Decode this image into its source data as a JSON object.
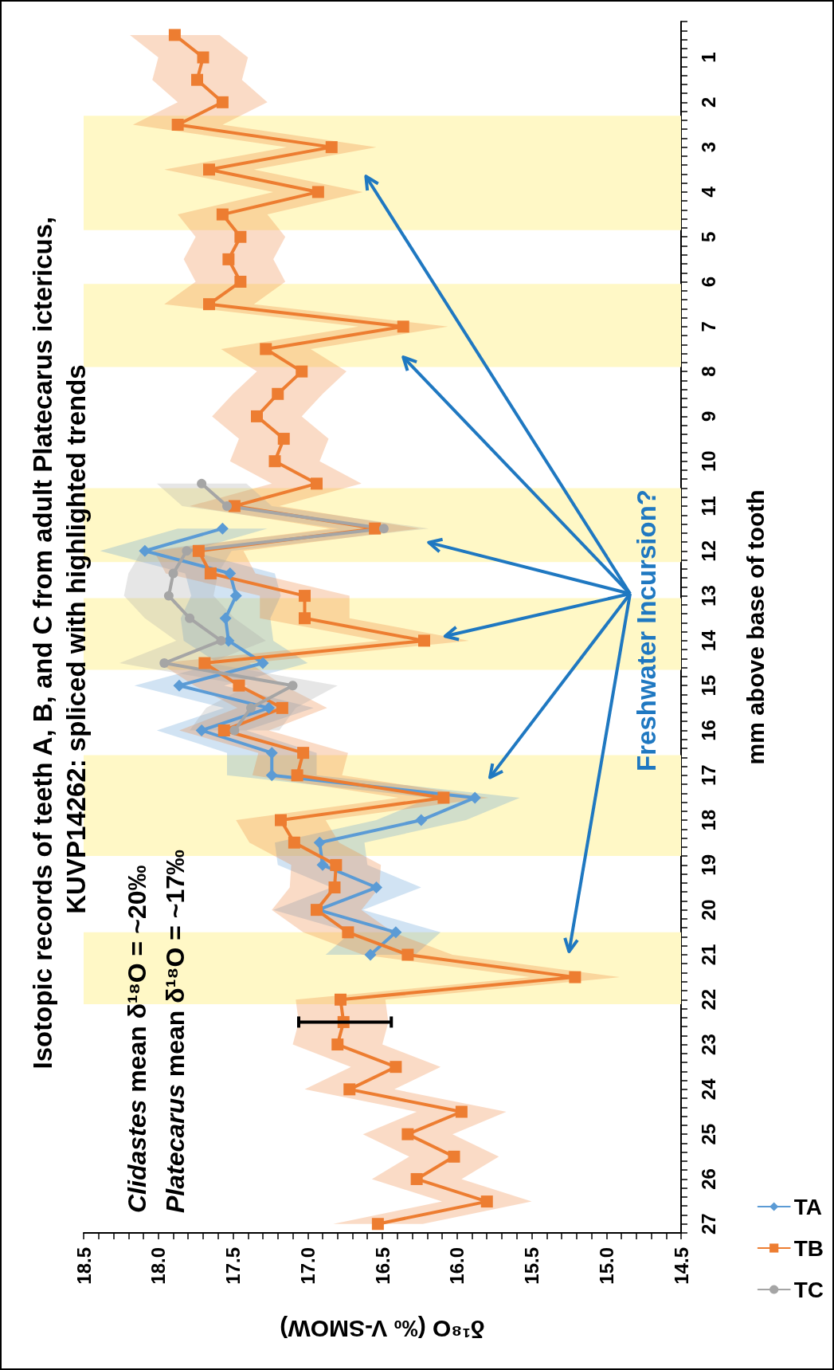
{
  "chart_data": {
    "type": "line",
    "title": "Isotopic records of teeth A, B, and C from adult Platecarus ictericus, KUVP14262: spliced with highlighted trends",
    "orientation": "horizontal",
    "xlabel": "δ¹⁸O (‰ V-SMOW)",
    "ylabel": "mm above base of tooth",
    "annotations": [
      "Clidastes mean δ¹⁸O = ~20‰",
      "Platecarus mean δ¹⁸O = ~17‰",
      {
        "text": "Freshwater Incursion?",
        "x": 16.08,
        "y": 13.9
      }
    ],
    "xlim": [
      18.5,
      14.5
    ],
    "ylim": [
      27.2,
      0.2
    ],
    "grid": false,
    "legend": "bottom",
    "line_style": "solid",
    "xticks": [
      14.5,
      {
        "value": 14.6,
        "label": null
      },
      {
        "value": 14.7,
        "label": null
      },
      {
        "value": 14.8,
        "label": null
      },
      {
        "value": 14.9,
        "label": null
      },
      {
        "value": 15,
        "label": "15.0"
      },
      {
        "value": 15.1,
        "label": null
      },
      {
        "value": 15.2,
        "label": null
      },
      {
        "value": 15.3,
        "label": null
      },
      {
        "value": 15.4,
        "label": null
      },
      15.5,
      {
        "value": 15.6,
        "label": null
      },
      {
        "value": 15.7,
        "label": null
      },
      {
        "value": 15.8,
        "label": null
      },
      {
        "value": 15.9,
        "label": null
      },
      {
        "value": 16,
        "label": "16.0"
      },
      {
        "value": 16.1,
        "label": null
      },
      {
        "value": 16.2,
        "label": null
      },
      {
        "value": 16.3,
        "label": null
      },
      {
        "value": 16.4,
        "label": null
      },
      16.5,
      {
        "value": 16.6,
        "label": null
      },
      {
        "value": 16.7,
        "label": null
      },
      {
        "value": 16.8,
        "label": null
      },
      {
        "value": 16.9,
        "label": null
      },
      {
        "value": 17,
        "label": "17.0"
      },
      {
        "value": 17.1,
        "label": null
      },
      {
        "value": 17.2,
        "label": null
      },
      {
        "value": 17.3,
        "label": null
      },
      {
        "value": 17.4,
        "label": null
      },
      17.5,
      {
        "value": 17.6,
        "label": null
      },
      {
        "value": 17.7,
        "label": null
      },
      {
        "value": 17.8,
        "label": null
      },
      {
        "value": 17.9,
        "label": null
      },
      {
        "value": 18,
        "label": "18.0"
      },
      {
        "value": 18.1,
        "label": null
      },
      {
        "value": 18.2,
        "label": null
      },
      {
        "value": 18.3,
        "label": null
      },
      {
        "value": 18.4,
        "label": null
      },
      18.5
    ],
    "yticks": [
      {
        "value": 0.2,
        "label": null
      },
      {
        "value": 0.4,
        "label": null
      },
      {
        "value": 0.6,
        "label": null
      },
      {
        "value": 0.8,
        "label": null
      },
      1,
      {
        "value": 1.2,
        "label": null
      },
      {
        "value": 1.4,
        "label": null
      },
      {
        "value": 1.6,
        "label": null
      },
      {
        "value": 1.8,
        "label": null
      },
      2,
      {
        "value": 2.2,
        "label": null
      },
      {
        "value": 2.4,
        "label": null
      },
      {
        "value": 2.6,
        "label": null
      },
      {
        "value": 2.8,
        "label": null
      },
      3,
      {
        "value": 3.2,
        "label": null
      },
      {
        "value": 3.4,
        "label": null
      },
      {
        "value": 3.6,
        "label": null
      },
      {
        "value": 3.8,
        "label": null
      },
      4,
      {
        "value": 4.2,
        "label": null
      },
      {
        "value": 4.4,
        "label": null
      },
      {
        "value": 4.6,
        "label": null
      },
      {
        "value": 4.8,
        "label": null
      },
      5,
      {
        "value": 5.2,
        "label": null
      },
      {
        "value": 5.4,
        "label": null
      },
      {
        "value": 5.6,
        "label": null
      },
      {
        "value": 5.8,
        "label": null
      },
      6,
      {
        "value": 6.2,
        "label": null
      },
      {
        "value": 6.4,
        "label": null
      },
      {
        "value": 6.6,
        "label": null
      },
      {
        "value": 6.8,
        "label": null
      },
      7,
      {
        "value": 7.2,
        "label": null
      },
      {
        "value": 7.4,
        "label": null
      },
      {
        "value": 7.6,
        "label": null
      },
      {
        "value": 7.8,
        "label": null
      },
      8,
      {
        "value": 8.2,
        "label": null
      },
      {
        "value": 8.4,
        "label": null
      },
      {
        "value": 8.6,
        "label": null
      },
      {
        "value": 8.8,
        "label": null
      },
      9,
      {
        "value": 9.2,
        "label": null
      },
      {
        "value": 9.4,
        "label": null
      },
      {
        "value": 9.6,
        "label": null
      },
      {
        "value": 9.8,
        "label": null
      },
      10,
      {
        "value": 10.2,
        "label": null
      },
      {
        "value": 10.4,
        "label": null
      },
      {
        "value": 10.6,
        "label": null
      },
      {
        "value": 10.8,
        "label": null
      },
      11,
      {
        "value": 11.2,
        "label": null
      },
      {
        "value": 11.4,
        "label": null
      },
      {
        "value": 11.6,
        "label": null
      },
      {
        "value": 11.8,
        "label": null
      },
      12,
      {
        "value": 12.2,
        "label": null
      },
      {
        "value": 12.4,
        "label": null
      },
      {
        "value": 12.6,
        "label": null
      },
      {
        "value": 12.8,
        "label": null
      },
      13,
      {
        "value": 13.2,
        "label": null
      },
      {
        "value": 13.4,
        "label": null
      },
      {
        "value": 13.6,
        "label": null
      },
      {
        "value": 13.8,
        "label": null
      },
      14,
      {
        "value": 14.2,
        "label": null
      },
      {
        "value": 14.4,
        "label": null
      },
      {
        "value": 14.6,
        "label": null
      },
      {
        "value": 14.8,
        "label": null
      },
      15,
      {
        "value": 15.2,
        "label": null
      },
      {
        "value": 15.4,
        "label": null
      },
      {
        "value": 15.6,
        "label": null
      },
      {
        "value": 15.8,
        "label": null
      },
      16,
      {
        "value": 16.2,
        "label": null
      },
      {
        "value": 16.4,
        "label": null
      },
      {
        "value": 16.6,
        "label": null
      },
      {
        "value": 16.8,
        "label": null
      },
      17,
      {
        "value": 17.2,
        "label": null
      },
      {
        "value": 17.4,
        "label": null
      },
      {
        "value": 17.6,
        "label": null
      },
      {
        "value": 17.8,
        "label": null
      },
      18,
      {
        "value": 18.2,
        "label": null
      },
      {
        "value": 18.4,
        "label": null
      },
      {
        "value": 18.6,
        "label": null
      },
      {
        "value": 18.8,
        "label": null
      },
      19,
      {
        "value": 19.2,
        "label": null
      },
      {
        "value": 19.4,
        "label": null
      },
      {
        "value": 19.6,
        "label": null
      },
      {
        "value": 19.8,
        "label": null
      },
      20,
      {
        "value": 20.2,
        "label": null
      },
      {
        "value": 20.4,
        "label": null
      },
      {
        "value": 20.6,
        "label": null
      },
      {
        "value": 20.8,
        "label": null
      },
      21,
      {
        "value": 21.2,
        "label": null
      },
      {
        "value": 21.4,
        "label": null
      },
      {
        "value": 21.6,
        "label": null
      },
      {
        "value": 21.8,
        "label": null
      },
      22,
      {
        "value": 22.2,
        "label": null
      },
      {
        "value": 22.4,
        "label": null
      },
      {
        "value": 22.6,
        "label": null
      },
      {
        "value": 22.8,
        "label": null
      },
      23,
      {
        "value": 23.2,
        "label": null
      },
      {
        "value": 23.4,
        "label": null
      },
      {
        "value": 23.6,
        "label": null
      },
      {
        "value": 23.8,
        "label": null
      },
      24,
      {
        "value": 24.2,
        "label": null
      },
      {
        "value": 24.4,
        "label": null
      },
      {
        "value": 24.6,
        "label": null
      },
      {
        "value": 24.8,
        "label": null
      },
      25,
      {
        "value": 25.2,
        "label": null
      },
      {
        "value": 25.4,
        "label": null
      },
      {
        "value": 25.6,
        "label": null
      },
      {
        "value": 25.8,
        "label": null
      },
      26,
      {
        "value": 26.2,
        "label": null
      },
      {
        "value": 26.4,
        "label": null
      },
      {
        "value": 26.6,
        "label": null
      },
      {
        "value": 26.8,
        "label": null
      },
      27,
      {
        "value": 27.2,
        "label": null
      }
    ],
    "bands": [
      {
        "axis": "y",
        "from": 2.3,
        "to": 4.85,
        "color": "#fff8c6"
      },
      {
        "axis": "y",
        "from": 6.05,
        "to": 7.9,
        "color": "#fff8c6"
      },
      {
        "axis": "y",
        "from": 10.6,
        "to": 12.25,
        "color": "#fff8c6"
      },
      {
        "axis": "y",
        "from": 13.05,
        "to": 14.65,
        "color": "#fff8c6"
      },
      {
        "axis": "y",
        "from": 16.55,
        "to": 18.8,
        "color": "#fff8c6"
      },
      {
        "axis": "y",
        "from": 20.5,
        "to": 22.1,
        "color": "#fff8c6"
      }
    ],
    "series": [
      {
        "name": "TA",
        "color": "#5b9bd5",
        "marker": "diamond",
        "x": [
          11.5,
          12,
          12.5,
          13,
          13.5,
          14,
          14.5,
          15,
          15.5,
          16,
          16.5,
          17,
          17.5,
          18,
          18.5,
          19,
          19.5,
          20,
          20.5,
          21
        ],
        "values": [
          17.57,
          18.09,
          17.52,
          17.48,
          17.55,
          17.53,
          17.3,
          17.86,
          17.26,
          17.71,
          17.24,
          17.24,
          15.88,
          16.24,
          16.92,
          16.9,
          16.54,
          16.93,
          16.41,
          16.58
        ],
        "upper": [
          17.87,
          18.39,
          17.82,
          17.78,
          17.85,
          17.83,
          17.6,
          18.16,
          17.56,
          18.01,
          17.54,
          17.54,
          16.18,
          16.54,
          17.22,
          17.2,
          16.84,
          17.23,
          16.71,
          16.88
        ],
        "lower": [
          17.27,
          17.79,
          17.22,
          17.18,
          17.25,
          17.23,
          17.0,
          17.56,
          16.96,
          17.41,
          16.94,
          16.94,
          15.58,
          15.94,
          16.62,
          16.6,
          16.24,
          16.63,
          16.11,
          16.28
        ]
      },
      {
        "name": "TB",
        "color": "#ed7d31",
        "marker": "square",
        "x": [
          0.5,
          1,
          1.5,
          2,
          2.5,
          3,
          3.5,
          4,
          4.5,
          5,
          5.5,
          6,
          6.5,
          7,
          7.5,
          8,
          8.5,
          9,
          9.5,
          10,
          10.5,
          11,
          11.5,
          12,
          12.5,
          13,
          13.5,
          14,
          14.5,
          15,
          15.5,
          16,
          16.5,
          17,
          17.5,
          18,
          18.5,
          19,
          19.5,
          20,
          20.5,
          21,
          21.5,
          22,
          22.5,
          23,
          23.5,
          24,
          24.5,
          25,
          25.5,
          26,
          26.5,
          27
        ],
        "values": [
          17.89,
          17.7,
          17.74,
          17.57,
          17.87,
          16.84,
          17.66,
          16.93,
          17.57,
          17.45,
          17.53,
          17.45,
          17.66,
          16.36,
          17.28,
          17.04,
          17.2,
          17.34,
          17.16,
          17.22,
          16.94,
          17.49,
          16.55,
          17.73,
          17.65,
          17.02,
          17.02,
          16.22,
          17.69,
          17.46,
          17.17,
          17.56,
          17.03,
          17.07,
          16.09,
          17.18,
          17.09,
          16.81,
          16.82,
          16.94,
          16.73,
          16.33,
          15.21,
          16.78,
          16.76,
          16.8,
          16.41,
          16.72,
          15.97,
          16.33,
          16.02,
          16.27,
          15.8,
          16.53
        ],
        "upper": [
          18.19,
          18.0,
          18.04,
          17.87,
          18.17,
          17.14,
          17.96,
          17.23,
          17.87,
          17.75,
          17.83,
          17.75,
          17.96,
          16.66,
          17.58,
          17.34,
          17.5,
          17.64,
          17.46,
          17.52,
          17.24,
          17.79,
          16.85,
          18.03,
          17.95,
          17.32,
          17.32,
          16.52,
          17.99,
          17.76,
          17.47,
          17.86,
          17.33,
          17.37,
          16.39,
          17.48,
          17.39,
          17.11,
          17.12,
          17.24,
          17.03,
          16.63,
          15.51,
          17.08,
          17.06,
          17.1,
          16.71,
          17.02,
          16.27,
          16.63,
          16.32,
          16.57,
          16.1,
          16.83
        ],
        "lower": [
          17.59,
          17.4,
          17.44,
          17.27,
          17.57,
          16.54,
          17.36,
          16.63,
          17.27,
          17.15,
          17.23,
          17.15,
          17.36,
          16.06,
          16.98,
          16.74,
          16.9,
          17.04,
          16.86,
          16.92,
          16.64,
          17.19,
          16.25,
          17.43,
          17.35,
          16.72,
          16.72,
          15.92,
          17.39,
          17.16,
          16.87,
          17.26,
          16.73,
          16.77,
          15.79,
          16.88,
          16.79,
          16.51,
          16.52,
          16.64,
          16.43,
          16.03,
          14.91,
          16.48,
          16.46,
          16.5,
          16.11,
          16.42,
          15.67,
          16.03,
          15.72,
          15.97,
          15.5,
          16.23
        ],
        "errors": [
          null,
          null,
          null,
          null,
          null,
          null,
          null,
          null,
          null,
          null,
          null,
          null,
          null,
          null,
          null,
          null,
          null,
          null,
          null,
          null,
          null,
          null,
          null,
          null,
          null,
          null,
          null,
          null,
          null,
          null,
          null,
          null,
          null,
          null,
          null,
          null,
          null,
          null,
          null,
          null,
          null,
          null,
          null,
          null,
          [
            16.44,
            17.06
          ],
          null,
          null,
          null,
          null,
          null,
          null,
          null,
          null,
          null
        ]
      },
      {
        "name": "TC",
        "color": "#a5a5a5",
        "marker": "circle",
        "x": [
          10.5,
          11,
          11.5,
          12,
          12.5,
          13,
          13.5,
          14,
          14.5,
          15,
          15.5,
          16
        ],
        "values": [
          17.71,
          17.54,
          16.49,
          17.81,
          17.9,
          17.93,
          17.79,
          17.58,
          17.96,
          17.1,
          17.38,
          17.49
        ],
        "upper": [
          18.01,
          17.84,
          16.79,
          18.11,
          18.2,
          18.23,
          18.09,
          17.88,
          18.26,
          17.4,
          17.68,
          17.79
        ],
        "lower": [
          17.41,
          17.24,
          16.19,
          17.51,
          17.6,
          17.63,
          17.49,
          17.28,
          17.66,
          16.8,
          17.08,
          17.19
        ]
      }
    ]
  }
}
